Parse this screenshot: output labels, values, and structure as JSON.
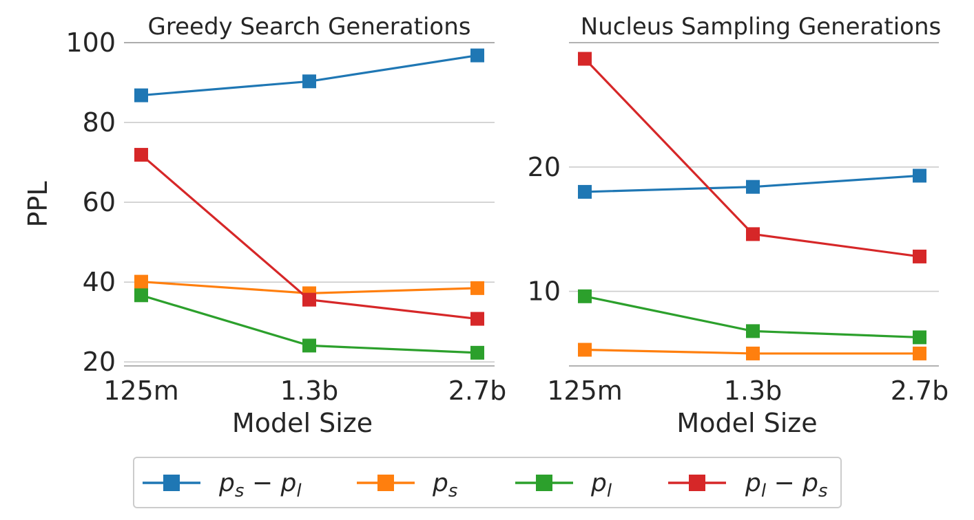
{
  "chart_data": [
    {
      "type": "line",
      "title": "Greedy Search Generations",
      "xlabel": "Model Size",
      "ylabel": "PPL",
      "categories": [
        "125m",
        "1.3b",
        "2.7b"
      ],
      "ylim": [
        19,
        100
      ],
      "yticks": [
        "20",
        "40",
        "60",
        "80",
        "100"
      ],
      "grid": "horizontal",
      "series": [
        {
          "name": "p_s - p_l",
          "color": "#1f77b4",
          "values": [
            86.8,
            90.3,
            96.8
          ]
        },
        {
          "name": "p_s",
          "color": "#ff7f0e",
          "values": [
            40.1,
            37.2,
            38.5
          ]
        },
        {
          "name": "p_l",
          "color": "#2ca02c",
          "values": [
            36.7,
            24.1,
            22.3
          ]
        },
        {
          "name": "p_l - p_s",
          "color": "#d62728",
          "values": [
            71.9,
            35.6,
            30.8
          ]
        }
      ]
    },
    {
      "type": "line",
      "title": "Nucleus Sampling Generations",
      "xlabel": "Model Size",
      "ylabel": "",
      "categories": [
        "125m",
        "1.3b",
        "2.7b"
      ],
      "ylim": [
        4,
        30
      ],
      "yticks": [
        "10",
        "20"
      ],
      "grid": "horizontal",
      "series": [
        {
          "name": "p_s - p_l",
          "color": "#1f77b4",
          "values": [
            18.0,
            18.4,
            19.3
          ]
        },
        {
          "name": "p_s",
          "color": "#ff7f0e",
          "values": [
            5.3,
            5.0,
            5.0
          ]
        },
        {
          "name": "p_l",
          "color": "#2ca02c",
          "values": [
            9.6,
            6.8,
            6.3
          ]
        },
        {
          "name": "p_l - p_s",
          "color": "#d62728",
          "values": [
            28.7,
            14.6,
            12.8
          ]
        }
      ]
    }
  ],
  "legend": {
    "placement": "bottom-center",
    "entries": [
      {
        "base": "p",
        "sub1": "s",
        "op": "−",
        "base2": "p",
        "sub2": "l",
        "color": "#1f77b4"
      },
      {
        "base": "p",
        "sub1": "s",
        "op": "",
        "base2": "",
        "sub2": "",
        "color": "#ff7f0e"
      },
      {
        "base": "p",
        "sub1": "l",
        "op": "",
        "base2": "",
        "sub2": "",
        "color": "#2ca02c"
      },
      {
        "base": "p",
        "sub1": "l",
        "op": "−",
        "base2": "p",
        "sub2": "s",
        "color": "#d62728"
      }
    ]
  }
}
